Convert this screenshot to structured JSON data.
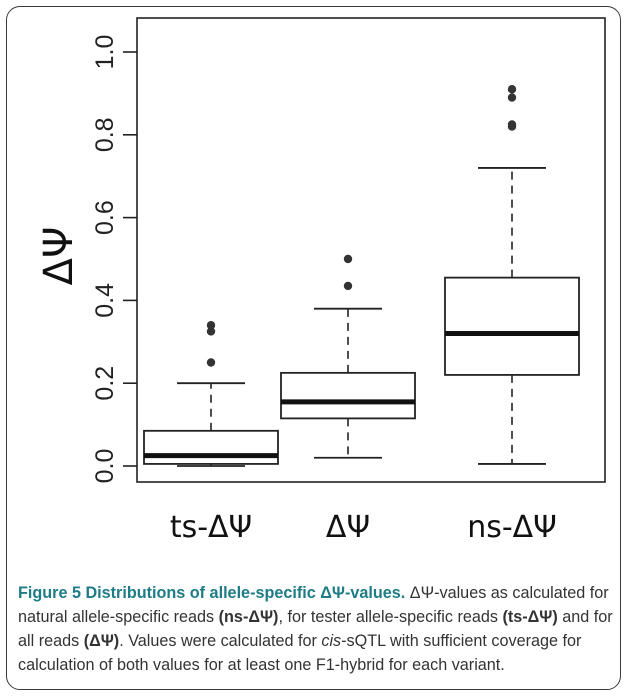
{
  "figure": {
    "label": "Figure 5",
    "title": "Distributions of allele-specific ΔΨ-values.",
    "caption": {
      "p1": "ΔΨ-values as calculated for natural allele-specific reads ",
      "b1": "(ns-ΔΨ)",
      "p2": ", for tester allele-specific reads ",
      "b2": "(ts-ΔΨ)",
      "p3": " and for all reads ",
      "b3": "(ΔΨ)",
      "p4": ". Values were calculated for ",
      "i1": "cis",
      "p5": "-sQTL with sufficient coverage for calculation of both values for at least one F1-hybrid for each variant."
    }
  },
  "chart_data": {
    "type": "boxplot",
    "title": "",
    "xlabel": "",
    "ylabel": "ΔΨ",
    "ylim": [
      0.0,
      1.0
    ],
    "yticks": [
      0.0,
      0.2,
      0.4,
      0.6,
      0.8,
      1.0
    ],
    "ytick_labels": [
      "0.0",
      "0.2",
      "0.4",
      "0.6",
      "0.8",
      "1.0"
    ],
    "categories": [
      "ts-ΔΨ",
      "ΔΨ",
      "ns-ΔΨ"
    ],
    "boxes": [
      {
        "name": "ts-ΔΨ",
        "min": 0.0,
        "q1": 0.005,
        "median": 0.025,
        "q3": 0.085,
        "max": 0.2,
        "outliers": [
          0.25,
          0.325,
          0.34
        ]
      },
      {
        "name": "ΔΨ",
        "min": 0.02,
        "q1": 0.115,
        "median": 0.155,
        "q3": 0.225,
        "max": 0.38,
        "outliers": [
          0.435,
          0.5
        ]
      },
      {
        "name": "ns-ΔΨ",
        "min": 0.005,
        "q1": 0.22,
        "median": 0.32,
        "q3": 0.455,
        "max": 0.72,
        "outliers": [
          0.82,
          0.825,
          0.89,
          0.91
        ]
      }
    ],
    "grid": false,
    "legend": "none"
  }
}
